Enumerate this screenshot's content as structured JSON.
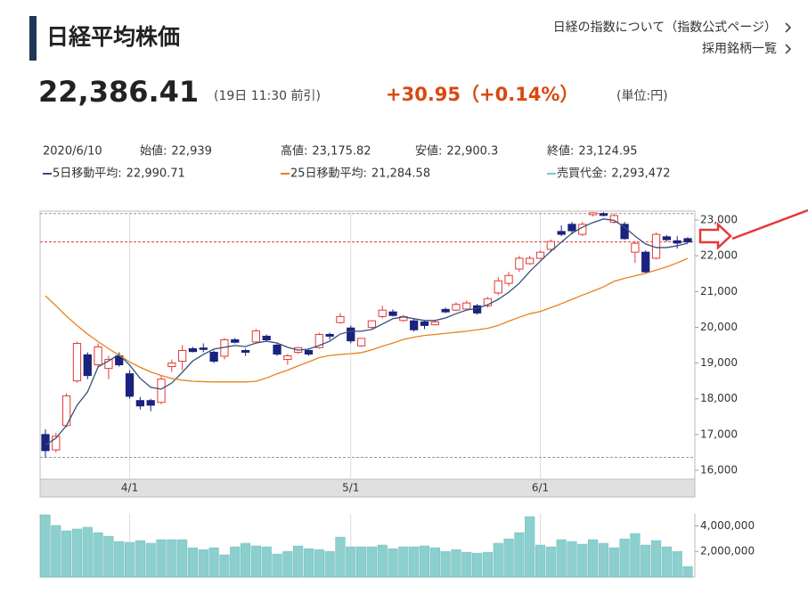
{
  "header": {
    "title": "日経平均株価",
    "price": "22,386.41",
    "time": "(19日 11:30 前引)",
    "change": "+30.95（+0.14%）",
    "unit": "(単位:円)",
    "links": [
      "日経の指数について（指数公式ページ）",
      "採用銘柄一覧"
    ]
  },
  "info": {
    "date": "2020/6/10",
    "items": [
      {
        "label": "始値:",
        "value": "22,939"
      },
      {
        "label": "高値:",
        "value": "23,175.82"
      },
      {
        "label": "安値:",
        "value": "22,900.3"
      },
      {
        "label": "終値:",
        "value": "23,124.95"
      }
    ],
    "turnover": {
      "label": "売買代金:",
      "value": "2,293,472",
      "color": "#7cc8d0"
    }
  },
  "chart_data": [
    {
      "type": "candlestick",
      "up_color": "#e53935",
      "down_color": "#1a237e",
      "categories": [
        null,
        null,
        null,
        null,
        null,
        null,
        null,
        null,
        "4/1",
        null,
        null,
        null,
        null,
        null,
        null,
        null,
        null,
        null,
        null,
        null,
        null,
        null,
        null,
        null,
        null,
        null,
        null,
        null,
        null,
        "5/1",
        null,
        null,
        null,
        null,
        null,
        null,
        null,
        null,
        null,
        null,
        null,
        null,
        null,
        null,
        null,
        null,
        null,
        "6/1",
        null,
        null,
        null,
        null,
        null,
        null,
        null,
        null,
        null,
        null,
        null,
        null,
        null,
        null
      ],
      "open": [
        17000,
        16570,
        17250,
        18500,
        19230,
        18950,
        18850,
        19200,
        18700,
        17950,
        17950,
        17900,
        18900,
        19050,
        19400,
        19420,
        19300,
        19190,
        19650,
        19350,
        19590,
        19750,
        19500,
        19100,
        19300,
        19350,
        19430,
        19800,
        20130,
        19980,
        19480,
        20000,
        20300,
        20430,
        20190,
        20180,
        20150,
        20070,
        20500,
        20480,
        20510,
        20600,
        20600,
        20960,
        21230,
        21630,
        21780,
        21930,
        22180,
        22680,
        22880,
        22600,
        23150,
        23180,
        22939,
        22880,
        22100,
        22100,
        21930,
        22530,
        22420,
        22480
      ],
      "high": [
        17150,
        17050,
        18150,
        19600,
        19300,
        19550,
        19200,
        19300,
        18800,
        18050,
        18000,
        18650,
        19100,
        19500,
        19450,
        19550,
        19350,
        19700,
        19700,
        19400,
        19950,
        19800,
        19550,
        19250,
        19450,
        19400,
        19850,
        19850,
        20400,
        20050,
        19700,
        20200,
        20600,
        20500,
        20350,
        20250,
        20200,
        20200,
        20550,
        20700,
        20750,
        20650,
        20850,
        21400,
        21550,
        22000,
        22000,
        22150,
        22450,
        22850,
        22950,
        22950,
        23220,
        23220,
        23175.82,
        22950,
        22400,
        22150,
        22650,
        22580,
        22550,
        22520
      ],
      "low": [
        16360,
        16500,
        17200,
        18450,
        18550,
        18900,
        18550,
        18900,
        18000,
        17700,
        17650,
        17850,
        18750,
        18800,
        19300,
        19300,
        19000,
        19100,
        19550,
        19200,
        19550,
        19600,
        19200,
        18950,
        19250,
        19200,
        19400,
        19650,
        20100,
        19550,
        19450,
        19950,
        20250,
        20300,
        20150,
        19880,
        19950,
        20050,
        20400,
        20450,
        20500,
        20350,
        20550,
        20900,
        21150,
        21550,
        21750,
        21900,
        22100,
        22550,
        22600,
        22550,
        23100,
        23100,
        22900.3,
        22450,
        21800,
        21500,
        21900,
        22400,
        22200,
        22350
      ],
      "close": [
        16550,
        16950,
        18080,
        19550,
        18650,
        19450,
        19100,
        18950,
        18070,
        17800,
        17820,
        18550,
        19000,
        19350,
        19320,
        19380,
        19050,
        19650,
        19580,
        19300,
        19900,
        19650,
        19250,
        19200,
        19430,
        19250,
        19800,
        19750,
        20300,
        19620,
        19690,
        20180,
        20480,
        20330,
        20300,
        19930,
        20050,
        20150,
        20430,
        20640,
        20680,
        20400,
        20800,
        21300,
        21450,
        21930,
        21930,
        22100,
        22400,
        22600,
        22700,
        22880,
        23200,
        23130,
        23124.95,
        22480,
        22350,
        21550,
        22600,
        22450,
        22355.46,
        22386.41
      ],
      "series": [
        {
          "name": "5日移動平均:",
          "color": "#34507a",
          "legend_value": "22,990.71",
          "values": [
            16700,
            16900,
            17250,
            17820,
            18190,
            18890,
            19060,
            19240,
            18940,
            18570,
            18320,
            18270,
            18440,
            18740,
            19060,
            19240,
            19390,
            19440,
            19490,
            19460,
            19560,
            19610,
            19560,
            19440,
            19360,
            19390,
            19490,
            19610,
            19810,
            19890,
            19890,
            19940,
            20090,
            20240,
            20290,
            20240,
            20190,
            20190,
            20260,
            20380,
            20480,
            20530,
            20630,
            20780,
            20980,
            21230,
            21560,
            21850,
            22130,
            22380,
            22630,
            22800,
            22930,
            23030,
            22990.71,
            22800,
            22550,
            22330,
            22230,
            22230,
            22280,
            22350
          ]
        },
        {
          "name": "25日移動平均:",
          "color": "#e8821e",
          "legend_value": "21,284.58",
          "values": [
            20880,
            20600,
            20310,
            20050,
            19810,
            19600,
            19400,
            19220,
            19030,
            18880,
            18750,
            18650,
            18570,
            18520,
            18490,
            18480,
            18470,
            18470,
            18470,
            18470,
            18490,
            18580,
            18700,
            18800,
            18920,
            19030,
            19150,
            19210,
            19240,
            19260,
            19290,
            19370,
            19470,
            19560,
            19660,
            19720,
            19770,
            19800,
            19830,
            19860,
            19890,
            19930,
            19970,
            20050,
            20170,
            20280,
            20380,
            20440,
            20550,
            20660,
            20780,
            20900,
            21010,
            21130,
            21284.58,
            21370,
            21440,
            21510,
            21600,
            21690,
            21800,
            21930
          ]
        }
      ],
      "reference_lines": [
        {
          "value": 23180,
          "color": "#999999"
        },
        {
          "value": 16360,
          "color": "#999999"
        },
        {
          "value": 22386.41,
          "color": "#e53935"
        }
      ],
      "ylim": [
        15750,
        23250
      ],
      "yticks": [
        {
          "value": 16000,
          "label": "16,000"
        },
        {
          "value": 17000,
          "label": "17,000"
        },
        {
          "value": 18000,
          "label": "18,000"
        },
        {
          "value": 19000,
          "label": "19,000"
        },
        {
          "value": 20000,
          "label": "20,000"
        },
        {
          "value": 21000,
          "label": "21,000"
        },
        {
          "value": 22000,
          "label": "22,000"
        },
        {
          "value": 23000,
          "label": "23,000"
        }
      ]
    },
    {
      "type": "bar",
      "color": "#8ccfcf",
      "values": [
        4860000,
        4030000,
        3610000,
        3750000,
        3890000,
        3470000,
        3190000,
        2780000,
        2710000,
        2850000,
        2640000,
        2920000,
        2920000,
        2920000,
        2290000,
        2150000,
        2290000,
        1740000,
        2360000,
        2640000,
        2430000,
        2360000,
        1800000,
        2010000,
        2430000,
        2220000,
        2150000,
        2010000,
        3120000,
        2360000,
        2360000,
        2360000,
        2500000,
        2220000,
        2360000,
        2360000,
        2430000,
        2290000,
        2010000,
        2150000,
        1940000,
        1870000,
        1940000,
        2640000,
        2980000,
        3470000,
        4720000,
        2500000,
        2360000,
        2920000,
        2780000,
        2570000,
        2920000,
        2640000,
        2293472,
        2980000,
        3400000,
        2500000,
        2850000,
        2360000,
        2010000,
        830000
      ],
      "ylim": [
        0,
        4930000
      ],
      "yticks": [
        {
          "value": 2000000,
          "label": "2,000,000"
        },
        {
          "value": 4000000,
          "label": "4,000,000"
        }
      ]
    }
  ]
}
